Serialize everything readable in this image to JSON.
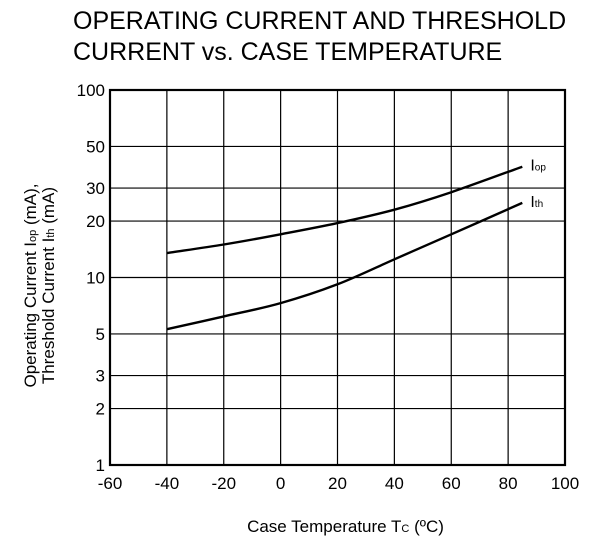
{
  "chart_data": {
    "type": "line",
    "title": [
      "OPERATING CURRENT AND THRESHOLD",
      "CURRENT vs. CASE TEMPERATURE"
    ],
    "xlabel": {
      "main": "Case Temperature  T",
      "sub": "C",
      "tail": " (ºC)"
    },
    "ylabel": {
      "line1": {
        "main": "Operating Current  I",
        "sub": "op",
        "tail": " (mA),"
      },
      "line2": {
        "main": "Threshold Current  I",
        "sub": "th",
        "tail": " (mA)"
      }
    },
    "xlim": [
      -60,
      100
    ],
    "ylim": [
      1,
      100
    ],
    "yscale": "log",
    "grid": true,
    "x_ticks": [
      -60,
      -40,
      -20,
      0,
      20,
      40,
      60,
      80,
      100
    ],
    "x_tick_labels": [
      "-60",
      "-40",
      "-20",
      "0",
      "20",
      "40",
      "60",
      "80",
      "100"
    ],
    "y_ticks": [
      1,
      2,
      3,
      5,
      10,
      20,
      30,
      50,
      100
    ],
    "y_tick_labels": [
      "1",
      "2",
      "3",
      "5",
      "10",
      "20",
      "30",
      "50",
      "100"
    ],
    "series": [
      {
        "name": {
          "main": "I",
          "sub": "op"
        },
        "x": [
          -40,
          -20,
          0,
          20,
          40,
          60,
          85
        ],
        "y": [
          13.5,
          15,
          17,
          19.5,
          23,
          28.5,
          39
        ]
      },
      {
        "name": {
          "main": "I",
          "sub": "th"
        },
        "x": [
          -40,
          -20,
          0,
          20,
          40,
          60,
          85
        ],
        "y": [
          5.3,
          6.2,
          7.3,
          9.2,
          12.5,
          17,
          25
        ]
      }
    ]
  }
}
